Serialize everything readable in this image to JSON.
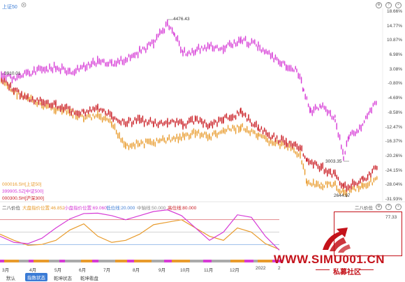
{
  "header": {
    "symbol_label": "上证50",
    "top_icons": [
      "settings-icon",
      "help-icon",
      "close-icon"
    ]
  },
  "main_chart": {
    "price_labels": [
      "4476.43",
      "3910.01",
      "3003.35",
      "2644.97"
    ],
    "legend": [
      "000016.SH[上证50]",
      "399905.SZ[中证500]",
      "000300.SH[沪深300]"
    ],
    "legend_colors": [
      "#e89b2c",
      "#d63ad6",
      "#c8161d"
    ],
    "y_ticks": [
      "18.66%",
      "14.77%",
      "10.87%",
      "6.98%",
      "3.08%",
      "-0.80%",
      "-4.69%",
      "-8.58%",
      "-12.47%",
      "-16.37%",
      "-20.26%",
      "-24.15%",
      "-28.04%",
      "-31.93%"
    ]
  },
  "indicator": {
    "title": "二八价位",
    "lines": [
      {
        "label": "大盘指价位置:46.852",
        "color": "#e89b2c"
      },
      {
        "label": "小盘指价位置:69.060",
        "color": "#d63ad6"
      },
      {
        "label": "低位线:20.000",
        "color": "#3a7bd5"
      },
      {
        "label": "中轴线:50.000",
        "color": "#888888"
      },
      {
        "label": "高位线:80.000",
        "color": "#c8161d"
      }
    ],
    "right_title": "二八价位",
    "right_value": "77.33"
  },
  "x_axis": [
    "3月",
    "4月",
    "5月",
    "6月",
    "7月",
    "8月",
    "9月",
    "10月",
    "11月",
    "12月",
    "2022",
    "2"
  ],
  "bottom_tabs": [
    "默认",
    "指数状态",
    "乾坤状态",
    "乾坤看盘"
  ],
  "watermark": {
    "url": "WWW.SIMU001.CN",
    "slogan": "私募社区"
  },
  "colors": {
    "large_cap": "#e89b2c",
    "small_cap": "#d63ad6",
    "index300": "#c8161d",
    "watermark": "#c4121a"
  }
}
